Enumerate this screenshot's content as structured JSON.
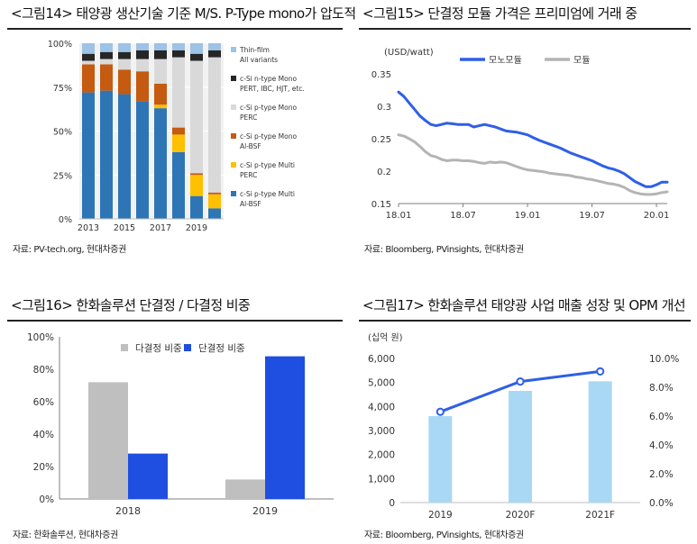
{
  "panels": {
    "p14": {
      "title": "<그림14> 태양광 생산기술 기준 M/S. P-Type mono가 압도적",
      "source": "자료: PV-tech.org, 현대차증권"
    },
    "p15": {
      "title": "<그림15> 단결정 모듈 가격은 프리미엄에 거래 중",
      "source": "자료: Bloomberg, PVinsights, 현대차증권"
    },
    "p16": {
      "title": "<그림16> 한화솔루션 단결정 / 다결정 비중",
      "source": "자료: 한화솔루션, 현대차증권"
    },
    "p17": {
      "title": "<그림17> 한화솔루션 태양광 사업 매출 성장 및 OPM 개선",
      "source": "자료: Bloomberg, PVinsights, 현대차증권"
    }
  },
  "chart_data": [
    {
      "id": "fig14",
      "type": "bar",
      "stacked": true,
      "x_tick_labels": [
        "2013",
        "2015",
        "2017",
        "2019"
      ],
      "categories": [
        "2013",
        "2014",
        "2015",
        "2016",
        "2017",
        "2018",
        "2019",
        "2020"
      ],
      "yticks": [
        "0%",
        "25%",
        "50%",
        "75%",
        "100%"
      ],
      "ylim": [
        0,
        100
      ],
      "legend_position": "right",
      "series": [
        {
          "name": "c-Si p-type Multi Al-BSF",
          "color": "#2e75b6",
          "values": [
            72,
            73,
            71,
            67,
            63,
            38,
            13,
            6
          ]
        },
        {
          "name": "c-Si p-type Multi PERC",
          "color": "#ffc000",
          "values": [
            0,
            0,
            0,
            0,
            2,
            10,
            12,
            8
          ]
        },
        {
          "name": "c-Si p-type Mono Al-BSF",
          "color": "#c55a11",
          "values": [
            16,
            15,
            14,
            17,
            12,
            4,
            1,
            1
          ]
        },
        {
          "name": "c-Si p-type Mono PERC",
          "color": "#d9d9d9",
          "values": [
            2,
            3,
            6,
            7,
            14,
            40,
            64,
            77
          ]
        },
        {
          "name": "c-Si n-type Mono PERT, IBC, HJT, etc.",
          "color": "#262626",
          "values": [
            4,
            4,
            4,
            5,
            5,
            4,
            4,
            4
          ]
        },
        {
          "name": "Thin-film All variants",
          "color": "#9dc3e6",
          "values": [
            6,
            5,
            5,
            4,
            4,
            4,
            6,
            4
          ]
        }
      ],
      "legend": [
        {
          "l1": "Thin-film",
          "l2": "All variants",
          "color": "#9dc3e6"
        },
        {
          "l1": "c-Si n-type Mono",
          "l2": "PERT, IBC, HJT, etc.",
          "color": "#262626"
        },
        {
          "l1": "c-Si p-type Mono",
          "l2": "PERC",
          "color": "#d9d9d9"
        },
        {
          "l1": "c-Si p-type Mono",
          "l2": "Al-BSF",
          "color": "#c55a11"
        },
        {
          "l1": "c-Si p-type Multi",
          "l2": "PERC",
          "color": "#ffc000"
        },
        {
          "l1": "c-Si p-type Multi",
          "l2": "Al-BSF",
          "color": "#2e75b6"
        }
      ]
    },
    {
      "id": "fig15",
      "type": "line",
      "unit_label": "(USD/watt)",
      "xticks": [
        "18.01",
        "18.07",
        "19.01",
        "19.07",
        "20.01"
      ],
      "yticks": [
        "0.15",
        "0.2",
        "0.25",
        "0.3",
        "0.35"
      ],
      "ylim": [
        0.15,
        0.35
      ],
      "x_range_months": [
        0,
        25
      ],
      "series": [
        {
          "name": "모노모듈",
          "color": "#2f5fe6",
          "points": [
            [
              0,
              0.322
            ],
            [
              0.5,
              0.315
            ],
            [
              1,
              0.305
            ],
            [
              1.5,
              0.295
            ],
            [
              2,
              0.285
            ],
            [
              2.5,
              0.278
            ],
            [
              3,
              0.272
            ],
            [
              3.5,
              0.27
            ],
            [
              4,
              0.272
            ],
            [
              4.5,
              0.274
            ],
            [
              5,
              0.273
            ],
            [
              5.5,
              0.272
            ],
            [
              6,
              0.272
            ],
            [
              6.5,
              0.272
            ],
            [
              7,
              0.268
            ],
            [
              7.5,
              0.27
            ],
            [
              8,
              0.272
            ],
            [
              8.5,
              0.27
            ],
            [
              9,
              0.268
            ],
            [
              9.5,
              0.265
            ],
            [
              10,
              0.262
            ],
            [
              10.5,
              0.261
            ],
            [
              11,
              0.26
            ],
            [
              11.5,
              0.258
            ],
            [
              12,
              0.256
            ],
            [
              12.5,
              0.252
            ],
            [
              13,
              0.248
            ],
            [
              13.5,
              0.245
            ],
            [
              14,
              0.242
            ],
            [
              14.5,
              0.239
            ],
            [
              15,
              0.236
            ],
            [
              15.5,
              0.232
            ],
            [
              16,
              0.228
            ],
            [
              16.5,
              0.225
            ],
            [
              17,
              0.222
            ],
            [
              17.5,
              0.219
            ],
            [
              18,
              0.216
            ],
            [
              18.5,
              0.212
            ],
            [
              19,
              0.208
            ],
            [
              19.5,
              0.205
            ],
            [
              20,
              0.203
            ],
            [
              20.5,
              0.2
            ],
            [
              21,
              0.196
            ],
            [
              21.5,
              0.19
            ],
            [
              22,
              0.184
            ],
            [
              22.5,
              0.18
            ],
            [
              23,
              0.176
            ],
            [
              23.5,
              0.176
            ],
            [
              24,
              0.179
            ],
            [
              24.5,
              0.183
            ],
            [
              25,
              0.183
            ]
          ]
        },
        {
          "name": "모듈",
          "color": "#b4b4b4",
          "points": [
            [
              0,
              0.256
            ],
            [
              0.5,
              0.254
            ],
            [
              1,
              0.25
            ],
            [
              1.5,
              0.245
            ],
            [
              2,
              0.238
            ],
            [
              2.5,
              0.23
            ],
            [
              3,
              0.224
            ],
            [
              3.5,
              0.222
            ],
            [
              4,
              0.218
            ],
            [
              4.5,
              0.216
            ],
            [
              5,
              0.217
            ],
            [
              5.5,
              0.217
            ],
            [
              6,
              0.216
            ],
            [
              6.5,
              0.216
            ],
            [
              7,
              0.215
            ],
            [
              7.5,
              0.213
            ],
            [
              8,
              0.212
            ],
            [
              8.5,
              0.214
            ],
            [
              9,
              0.213
            ],
            [
              9.5,
              0.214
            ],
            [
              10,
              0.213
            ],
            [
              10.5,
              0.21
            ],
            [
              11,
              0.207
            ],
            [
              11.5,
              0.204
            ],
            [
              12,
              0.202
            ],
            [
              12.5,
              0.201
            ],
            [
              13,
              0.2
            ],
            [
              13.5,
              0.199
            ],
            [
              14,
              0.197
            ],
            [
              14.5,
              0.196
            ],
            [
              15,
              0.195
            ],
            [
              15.5,
              0.194
            ],
            [
              16,
              0.193
            ],
            [
              16.5,
              0.191
            ],
            [
              17,
              0.19
            ],
            [
              17.5,
              0.188
            ],
            [
              18,
              0.187
            ],
            [
              18.5,
              0.185
            ],
            [
              19,
              0.183
            ],
            [
              19.5,
              0.181
            ],
            [
              20,
              0.18
            ],
            [
              20.5,
              0.178
            ],
            [
              21,
              0.175
            ],
            [
              21.5,
              0.17
            ],
            [
              22,
              0.167
            ],
            [
              22.5,
              0.165
            ],
            [
              23,
              0.164
            ],
            [
              23.5,
              0.164
            ],
            [
              24,
              0.165
            ],
            [
              24.5,
              0.167
            ],
            [
              25,
              0.168
            ]
          ]
        }
      ]
    },
    {
      "id": "fig16",
      "type": "bar",
      "categories": [
        "2018",
        "2019"
      ],
      "yticks": [
        "0%",
        "20%",
        "40%",
        "60%",
        "80%",
        "100%"
      ],
      "ylim": [
        0,
        100
      ],
      "legend_position": "top-left",
      "series": [
        {
          "name": "다결정 비중",
          "color": "#bfbfbf",
          "values": [
            72,
            12
          ]
        },
        {
          "name": "단결정 비중",
          "color": "#1f4fe0",
          "values": [
            28,
            88
          ]
        }
      ]
    },
    {
      "id": "fig17",
      "type": "bar",
      "unit_label": "(십억 원)",
      "categories": [
        "2019",
        "2020F",
        "2021F"
      ],
      "yticks_left": [
        "0",
        "1,000",
        "2,000",
        "3,000",
        "4,000",
        "5,000",
        "6,000"
      ],
      "ylim_left": [
        0,
        6000
      ],
      "yticks_right": [
        "0.0%",
        "2.0%",
        "4.0%",
        "6.0%",
        "8.0%",
        "10.0%"
      ],
      "ylim_right": [
        0,
        10
      ],
      "series": [
        {
          "name": "매출",
          "color": "#a9d8f5",
          "values": [
            3600,
            4650,
            5050
          ],
          "axis": "left"
        },
        {
          "name": "OPM",
          "color": "#2f5fe6",
          "values": [
            6.3,
            8.4,
            9.1
          ],
          "axis": "right",
          "kind": "line"
        }
      ]
    }
  ]
}
